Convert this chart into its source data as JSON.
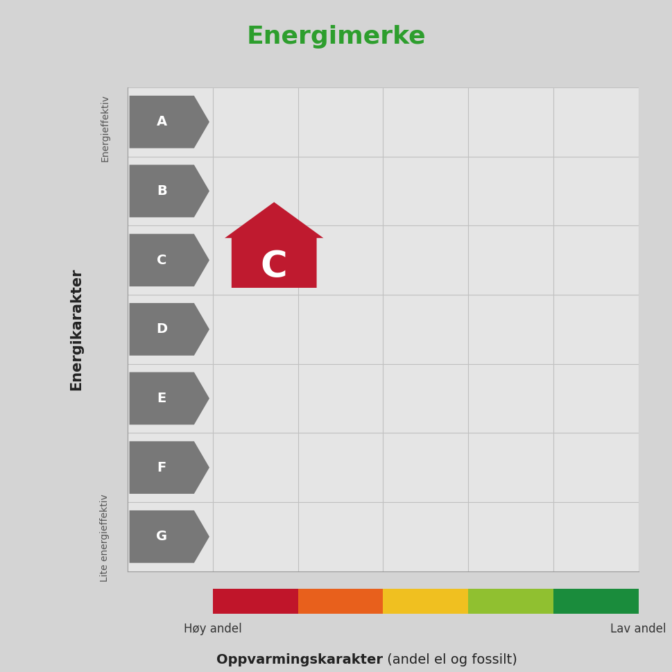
{
  "title": "Energimerke",
  "title_color": "#2d9e2d",
  "title_fontsize": 26,
  "bg_color": "#d4d4d4",
  "plot_bg_color": "#e5e5e5",
  "xlabel_bold": "Oppvarmingskarakter",
  "xlabel_normal": " (andel el og fossilt)",
  "ylabel": "Energikarakter",
  "ylabel_top": "Energieffektiv",
  "ylabel_bottom": "Lite energieffektiv",
  "x_label_left": "Høy andel",
  "x_label_right": "Lav andel",
  "energy_labels": [
    "A",
    "B",
    "C",
    "D",
    "E",
    "F",
    "G"
  ],
  "arrow_color": "#787878",
  "arrow_text_color": "#ffffff",
  "house_color": "#bf1a2f",
  "house_letter": "C",
  "house_letter_color": "#ffffff",
  "color_bar_colors": [
    "#c0152a",
    "#e8601c",
    "#f0c020",
    "#90c030",
    "#1a8c3c"
  ],
  "grid_color": "#c0c0c0",
  "grid_linewidth": 0.8
}
